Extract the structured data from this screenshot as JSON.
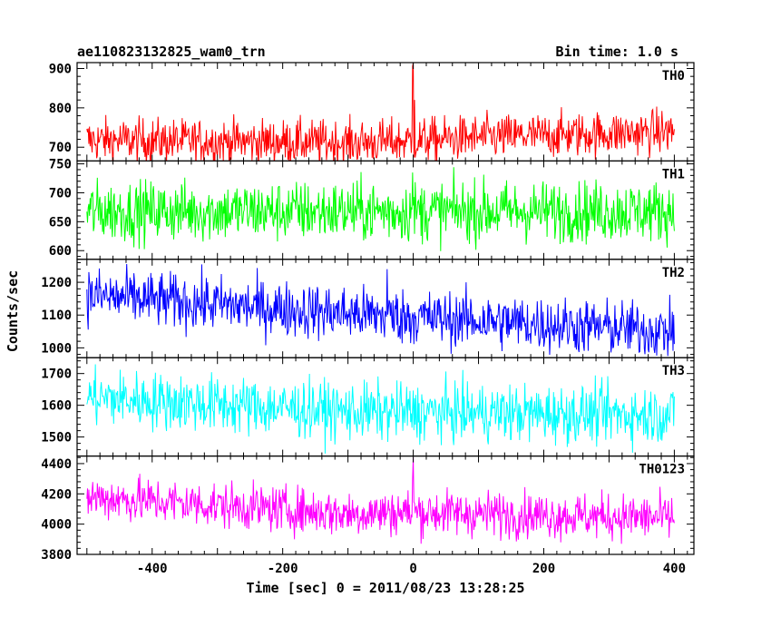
{
  "header": {
    "title": "ae110823132825_wam0_trn",
    "bin_time": "Bin time: 1.0 s"
  },
  "chart_data": {
    "type": "line",
    "xlabel": "Time [sec] 0 = 2011/08/23 13:28:25",
    "ylabel": "Counts/sec",
    "xlim": [
      -515,
      430
    ],
    "x_ticks": [
      -400,
      -200,
      0,
      200,
      400
    ],
    "x_range": [
      -500,
      400
    ],
    "grid": false,
    "panels": [
      {
        "name": "TH0",
        "color": "#ff0000",
        "ylim": [
          665,
          915
        ],
        "y_ticks": [
          700,
          800,
          900
        ],
        "trend": [
          [
            -500,
            718
          ],
          [
            -100,
            712
          ],
          [
            -20,
            715
          ],
          [
            100,
            725
          ],
          [
            400,
            740
          ]
        ],
        "noise": 28,
        "spikes": [
          [
            -1,
            905
          ],
          [
            0,
            915
          ],
          [
            2,
            820
          ]
        ]
      },
      {
        "name": "TH1",
        "color": "#00ff00",
        "ylim": [
          585,
          755
        ],
        "y_ticks": [
          600,
          650,
          700,
          750
        ],
        "trend": [
          [
            -500,
            668
          ],
          [
            400,
            668
          ]
        ],
        "noise": 26,
        "spikes": [
          [
            -1,
            735
          ]
        ]
      },
      {
        "name": "TH2",
        "color": "#0000ff",
        "ylim": [
          970,
          1270
        ],
        "y_ticks": [
          1000,
          1100,
          1200
        ],
        "trend": [
          [
            -500,
            1160
          ],
          [
            -100,
            1105
          ],
          [
            400,
            1050
          ]
        ],
        "noise": 42,
        "spikes": [
          [
            -40,
            1240
          ]
        ]
      },
      {
        "name": "TH3",
        "color": "#00ffff",
        "ylim": [
          1440,
          1750
        ],
        "y_ticks": [
          1500,
          1600,
          1700
        ],
        "trend": [
          [
            -500,
            1625
          ],
          [
            -100,
            1580
          ],
          [
            400,
            1570
          ]
        ],
        "noise": 45,
        "spikes": []
      },
      {
        "name": "TH0123",
        "color": "#ff00ff",
        "ylim": [
          3800,
          4450
        ],
        "y_ticks": [
          3800,
          4000,
          4200,
          4400
        ],
        "trend": [
          [
            -500,
            4180
          ],
          [
            -100,
            4070
          ],
          [
            -10,
            4080
          ],
          [
            400,
            4040
          ]
        ],
        "noise": 75,
        "spikes": [
          [
            0,
            4440
          ],
          [
            -1,
            4300
          ]
        ]
      }
    ]
  }
}
